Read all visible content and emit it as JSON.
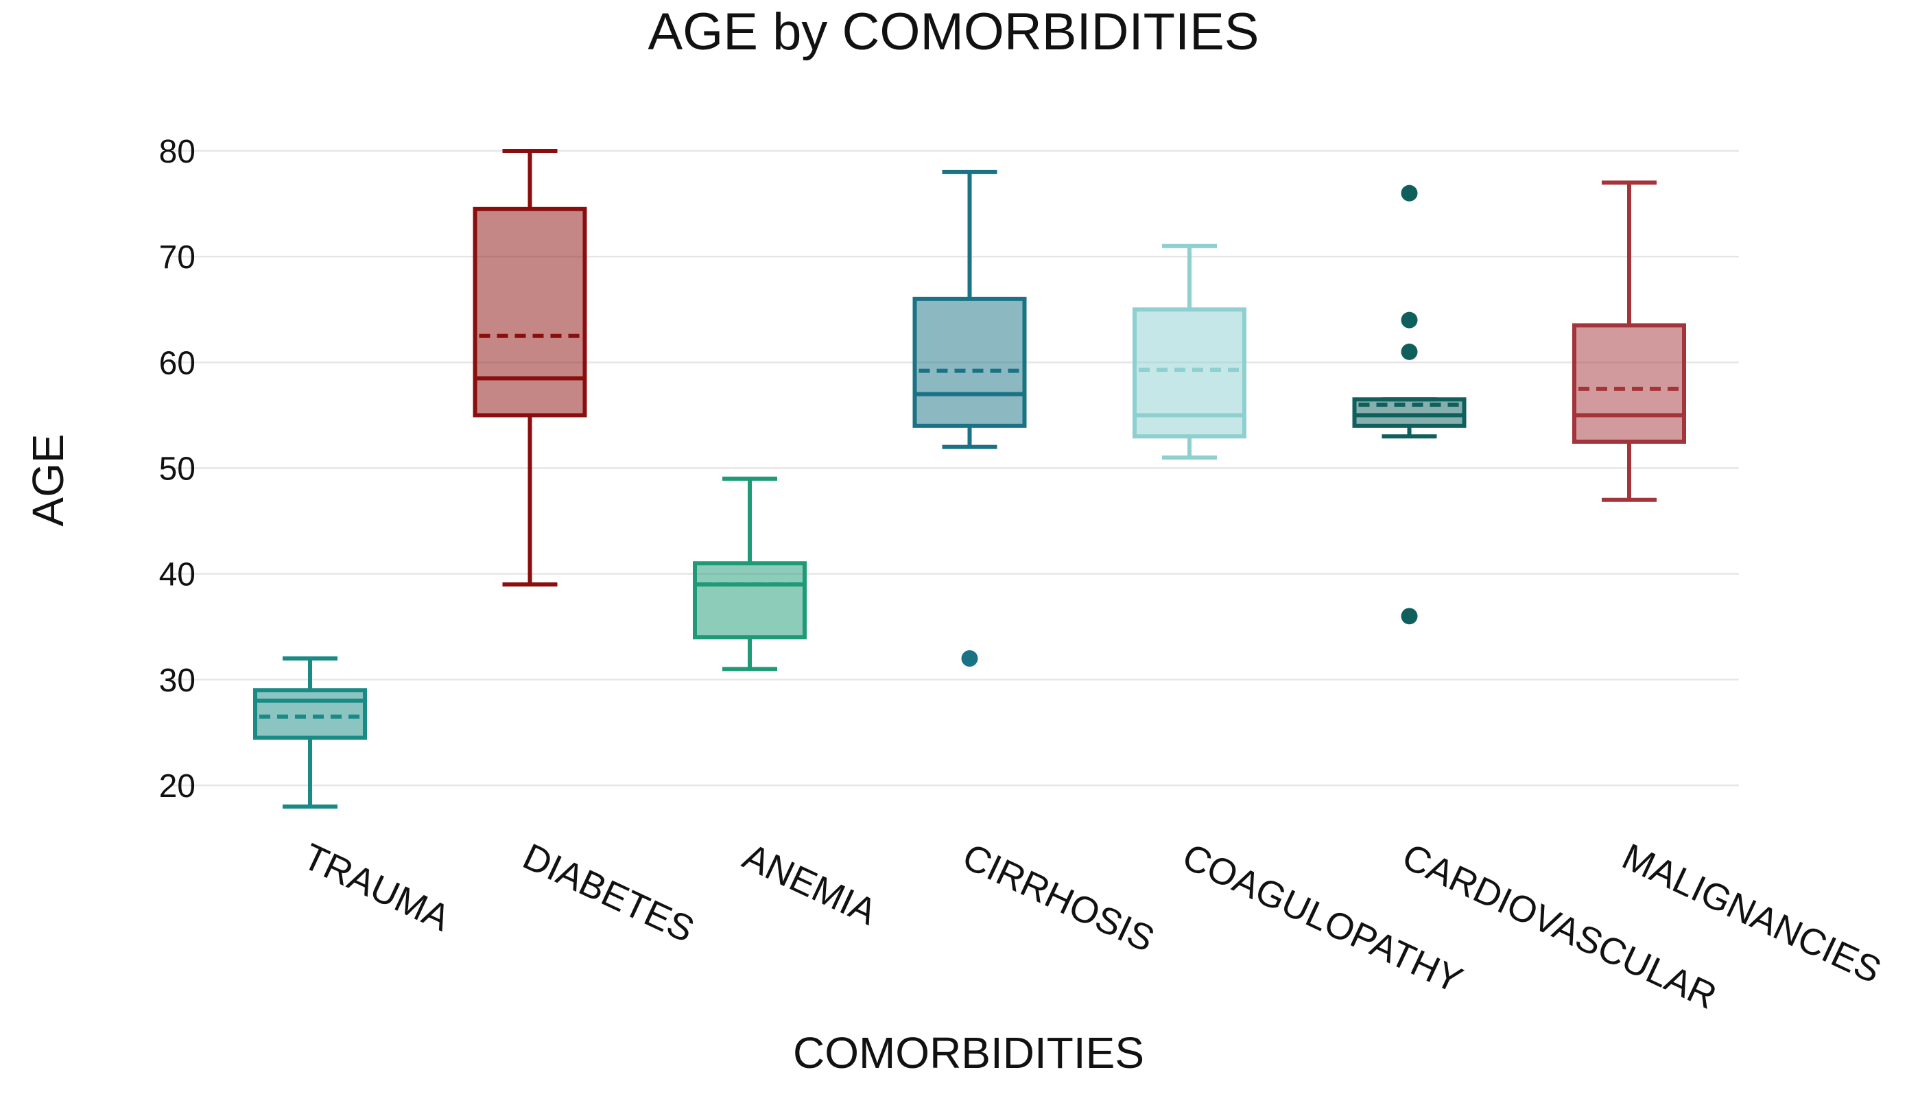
{
  "chart_data": {
    "type": "box",
    "title": "AGE by COMORBIDITIES",
    "xlabel": "COMORBIDITIES",
    "ylabel": "AGE",
    "ylim": [
      15,
      82
    ],
    "yticks": [
      20,
      30,
      40,
      50,
      60,
      70,
      80
    ],
    "grid": true,
    "legend": "none",
    "mean_line_style": "dashed",
    "categories": [
      "TRAUMA",
      "DIABETES",
      "ANEMIA",
      "CIRRHOSIS",
      "COAGULOPATHY",
      "CARDIOVASCULAR",
      "MALIGNANCIES"
    ],
    "series": [
      {
        "name": "TRAUMA",
        "whisker_low": 18,
        "q1": 24.5,
        "median": 28,
        "mean": 26.5,
        "q3": 29,
        "whisker_high": 32,
        "outliers": [],
        "color": "#1a8a85"
      },
      {
        "name": "DIABETES",
        "whisker_low": 39,
        "q1": 55,
        "median": 58.5,
        "mean": 62.5,
        "q3": 74.5,
        "whisker_high": 80,
        "outliers": [],
        "color": "#8b0e0e"
      },
      {
        "name": "ANEMIA",
        "whisker_low": 31,
        "q1": 34,
        "median": 39,
        "mean": 39,
        "q3": 41,
        "whisker_high": 49,
        "outliers": [],
        "color": "#1e9a76"
      },
      {
        "name": "CIRRHOSIS",
        "whisker_low": 52,
        "q1": 54,
        "median": 57,
        "mean": 59.2,
        "q3": 66,
        "whisker_high": 78,
        "outliers": [
          32
        ],
        "color": "#1a7285"
      },
      {
        "name": "COAGULOPATHY",
        "whisker_low": 51,
        "q1": 53,
        "median": 55,
        "mean": 59.3,
        "q3": 65,
        "whisker_high": 71,
        "outliers": [],
        "color": "#8ecfcf"
      },
      {
        "name": "CARDIOVASCULAR",
        "whisker_low": 53,
        "q1": 54,
        "median": 55,
        "mean": 56,
        "q3": 56.5,
        "whisker_high": 56.5,
        "outliers": [
          76,
          64,
          61,
          36
        ],
        "color": "#0f5f5d"
      },
      {
        "name": "MALIGNANCIES",
        "whisker_low": 47,
        "q1": 52.5,
        "median": 55,
        "mean": 57.5,
        "q3": 63.5,
        "whisker_high": 77,
        "outliers": [],
        "color": "#a3353a"
      }
    ]
  }
}
